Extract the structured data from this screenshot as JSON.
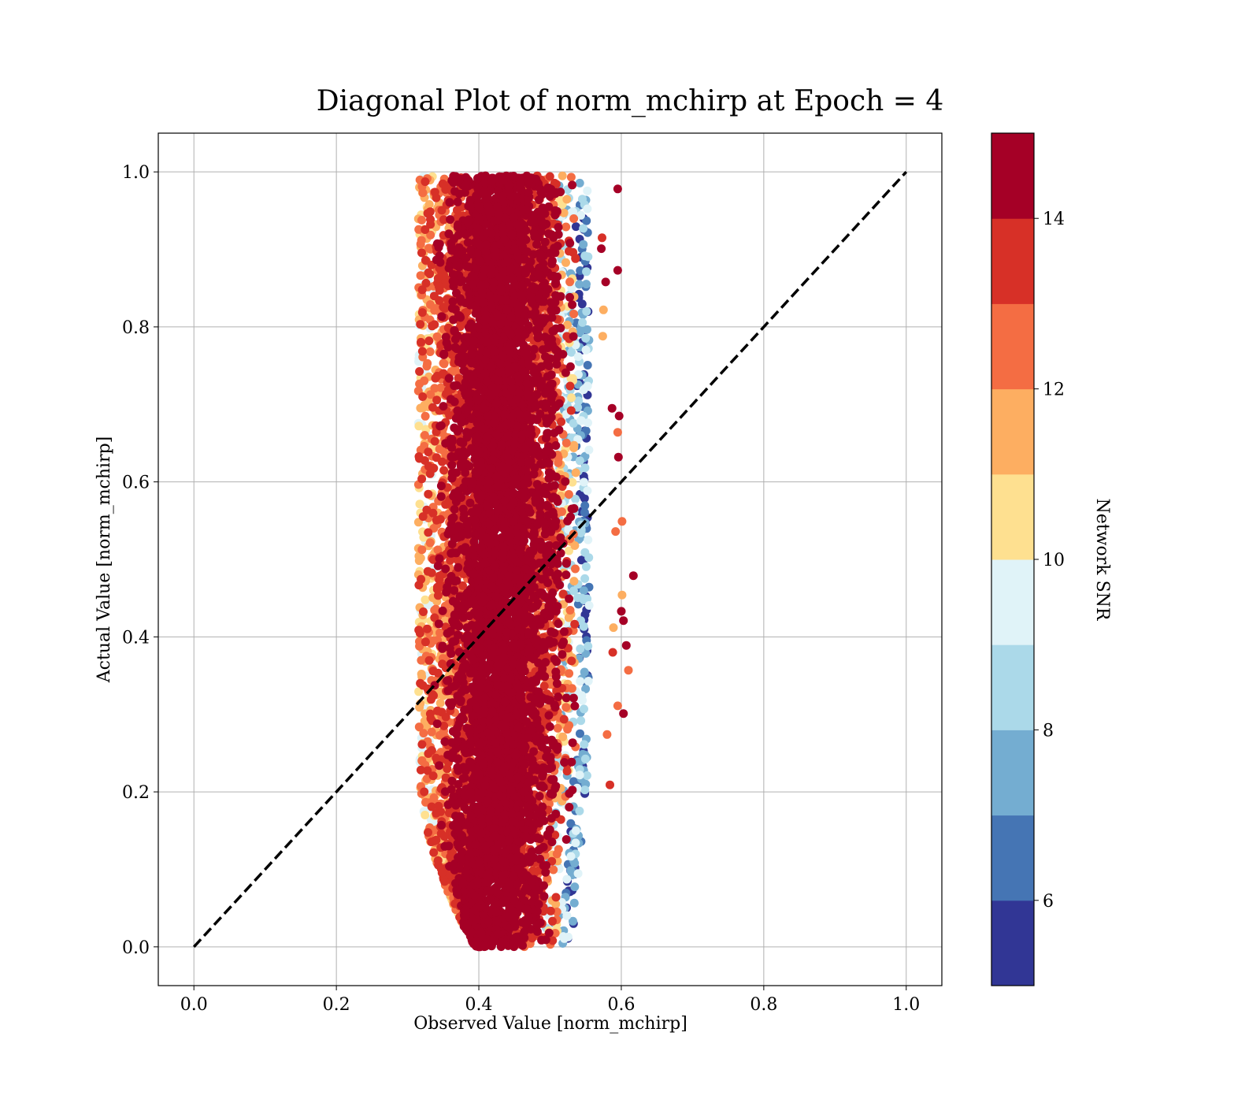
{
  "chart_data": {
    "type": "scatter",
    "title": "Diagonal Plot of norm_mchirp at Epoch = 4",
    "xlabel": "Observed Value [norm_mchirp]",
    "ylabel": "Actual Value [norm_mchirp]",
    "xlim": [
      -0.05,
      1.05
    ],
    "ylim": [
      -0.05,
      1.05
    ],
    "xticks": [
      0.0,
      0.2,
      0.4,
      0.6,
      0.8,
      1.0
    ],
    "yticks": [
      0.0,
      0.2,
      0.4,
      0.6,
      0.8,
      1.0
    ],
    "xtick_labels": [
      "0.0",
      "0.2",
      "0.4",
      "0.6",
      "0.8",
      "1.0"
    ],
    "ytick_labels": [
      "0.0",
      "0.2",
      "0.4",
      "0.6",
      "0.8",
      "1.0"
    ],
    "grid": true,
    "reference_line": {
      "style": "dashed",
      "color": "#000000",
      "x": [
        0.0,
        1.0
      ],
      "y": [
        0.0,
        1.0
      ]
    },
    "colorbar": {
      "label": "Network SNR",
      "range": [
        5,
        15
      ],
      "bins": [
        5,
        6,
        7,
        8,
        9,
        10,
        11,
        12,
        13,
        14,
        15
      ],
      "colors": [
        "#313695",
        "#4575b4",
        "#74add1",
        "#abd9e9",
        "#e0f3f8",
        "#fee090",
        "#fdae61",
        "#f46d43",
        "#d73027",
        "#a50026"
      ],
      "ticks": [
        6,
        8,
        10,
        12,
        14
      ],
      "tick_labels": [
        "6",
        "8",
        "10",
        "12",
        "14"
      ]
    },
    "cloud_description": {
      "x_center": 0.43,
      "x_range": [
        0.31,
        0.62
      ],
      "y_range": [
        0.0,
        1.0
      ],
      "points_sampled": 9000
    },
    "outliers": [
      {
        "x": 0.595,
        "y": 0.978,
        "snr": 14.5
      },
      {
        "x": 0.573,
        "y": 0.915,
        "snr": 13.5
      },
      {
        "x": 0.572,
        "y": 0.901,
        "snr": 14.5
      },
      {
        "x": 0.595,
        "y": 0.873,
        "snr": 14.5
      },
      {
        "x": 0.578,
        "y": 0.858,
        "snr": 14.5
      },
      {
        "x": 0.575,
        "y": 0.822,
        "snr": 11.5
      },
      {
        "x": 0.574,
        "y": 0.788,
        "snr": 11.5
      },
      {
        "x": 0.587,
        "y": 0.695,
        "snr": 14.5
      },
      {
        "x": 0.597,
        "y": 0.685,
        "snr": 14.5
      },
      {
        "x": 0.595,
        "y": 0.664,
        "snr": 12.5
      },
      {
        "x": 0.596,
        "y": 0.632,
        "snr": 14.5
      },
      {
        "x": 0.601,
        "y": 0.549,
        "snr": 12.5
      },
      {
        "x": 0.592,
        "y": 0.536,
        "snr": 12.5
      },
      {
        "x": 0.617,
        "y": 0.479,
        "snr": 14.5
      },
      {
        "x": 0.601,
        "y": 0.454,
        "snr": 11.5
      },
      {
        "x": 0.6,
        "y": 0.433,
        "snr": 14.5
      },
      {
        "x": 0.603,
        "y": 0.421,
        "snr": 14.5
      },
      {
        "x": 0.589,
        "y": 0.412,
        "snr": 11.5
      },
      {
        "x": 0.607,
        "y": 0.389,
        "snr": 14.5
      },
      {
        "x": 0.588,
        "y": 0.38,
        "snr": 13.5
      },
      {
        "x": 0.61,
        "y": 0.357,
        "snr": 12.5
      },
      {
        "x": 0.595,
        "y": 0.311,
        "snr": 12.5
      },
      {
        "x": 0.603,
        "y": 0.301,
        "snr": 14.5
      },
      {
        "x": 0.58,
        "y": 0.274,
        "snr": 12.5
      },
      {
        "x": 0.584,
        "y": 0.209,
        "snr": 13.5
      }
    ]
  }
}
